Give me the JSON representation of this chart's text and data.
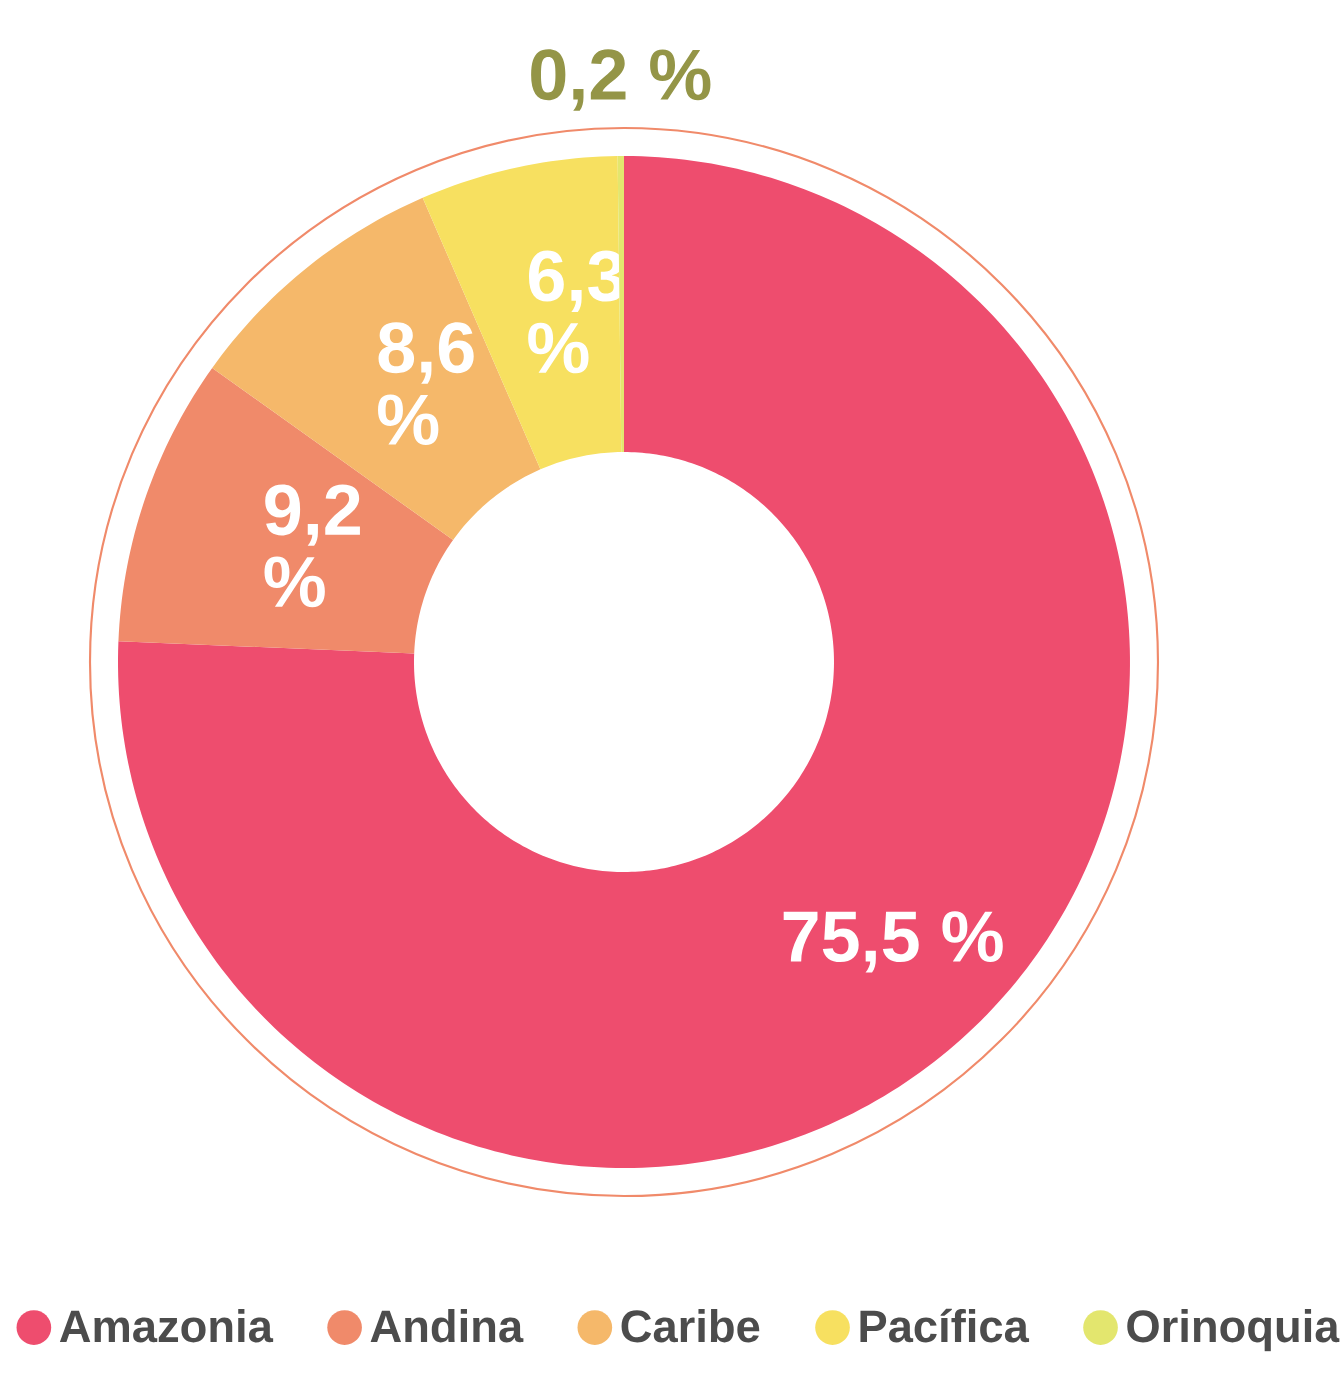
{
  "chart_data": {
    "type": "donut",
    "categories": [
      "Amazonia",
      "Andina",
      "Caribe",
      "Pacífica",
      "Orinoquia"
    ],
    "values": [
      75.5,
      9.2,
      8.6,
      6.3,
      0.2
    ],
    "colors": [
      "#ee4d6e",
      "#f08a6a",
      "#f5b86a",
      "#f7e060",
      "#e3e66e"
    ],
    "value_labels": [
      "75,5 %",
      "9,2 %",
      "8,6 %",
      "6,3 %",
      "0,2 %"
    ],
    "legend": "bottom"
  }
}
